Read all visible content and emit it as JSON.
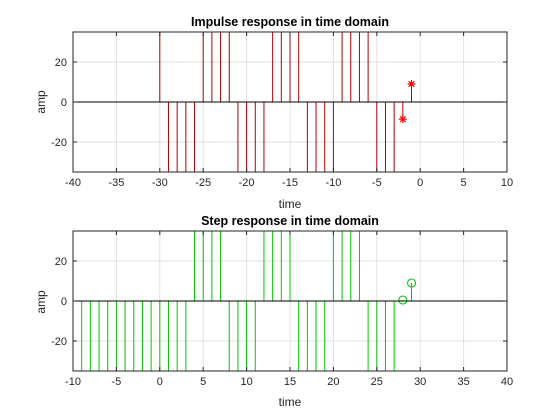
{
  "chart_data": [
    {
      "type": "stem",
      "title": "Impulse response in time domain",
      "xlabel": "time",
      "ylabel": "amp",
      "xlim": [
        -40,
        10
      ],
      "ylim": [
        -35,
        35
      ],
      "xticks": [
        -40,
        -35,
        -30,
        -25,
        -20,
        -15,
        -10,
        -5,
        0,
        5,
        10
      ],
      "yticks": [
        -20,
        0,
        20
      ],
      "grid": true,
      "stem_color": "#b00000",
      "marker_color": "#ff0000",
      "marker": "star",
      "x": [
        -30,
        -29,
        -28,
        -27,
        -26,
        -25,
        -24,
        -23,
        -22,
        -21,
        -20,
        -19,
        -18,
        -17,
        -16,
        -15,
        -14,
        -13,
        -12,
        -11,
        -10,
        -9,
        -8,
        -7,
        -6,
        -5,
        -4,
        -3,
        -2,
        -1
      ],
      "y": [
        35,
        -35,
        -35,
        -35,
        -35,
        35,
        35,
        35,
        35,
        -35,
        -35,
        -35,
        -35,
        35,
        35,
        35,
        35,
        -35,
        -35,
        -35,
        -35,
        35,
        35,
        35,
        35,
        -35,
        -35,
        -35,
        -8.6,
        9
      ],
      "marked_points": [
        28,
        29
      ]
    },
    {
      "type": "stem",
      "title": "Step response in time domain",
      "xlabel": "time",
      "ylabel": "amp",
      "xlim": [
        -10,
        40
      ],
      "ylim": [
        -35,
        35
      ],
      "xticks": [
        -10,
        -5,
        0,
        5,
        10,
        15,
        20,
        25,
        30,
        35,
        40
      ],
      "yticks": [
        -20,
        0,
        20
      ],
      "grid": true,
      "stem_color": "#00c800",
      "marker_color": "#00c800",
      "marker": "circle",
      "x": [
        -10,
        -9,
        -8,
        -7,
        -6,
        -5,
        -4,
        -3,
        -2,
        -1,
        0,
        1,
        2,
        3,
        4,
        5,
        6,
        7,
        8,
        9,
        10,
        11,
        12,
        13,
        14,
        15,
        16,
        17,
        18,
        19,
        20,
        21,
        22,
        23,
        24,
        25,
        26,
        27,
        28,
        29
      ],
      "y": [
        -35,
        -35,
        -35,
        -35,
        -35,
        -35,
        -35,
        -35,
        -35,
        -35,
        -35,
        -35,
        -35,
        -35,
        35,
        35,
        35,
        35,
        -35,
        -35,
        -35,
        -35,
        35,
        35,
        35,
        35,
        -35,
        -35,
        -35,
        -35,
        35,
        35,
        35,
        35,
        -35,
        -35,
        -35,
        -35,
        0.5,
        9
      ],
      "marked_points": [
        38,
        39
      ]
    }
  ]
}
